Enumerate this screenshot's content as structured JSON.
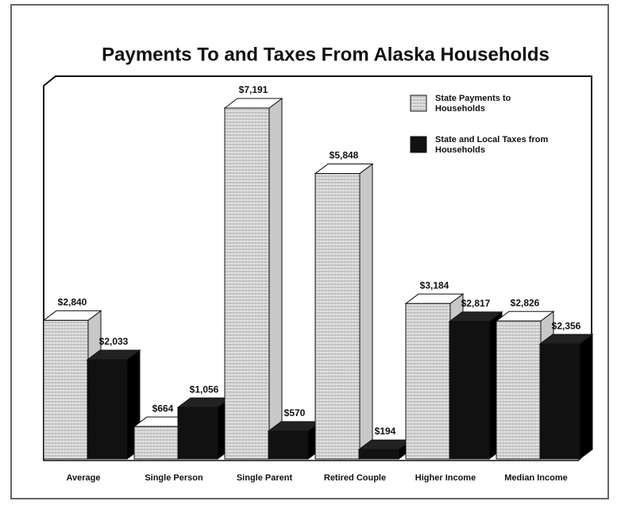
{
  "chart_data": {
    "type": "bar3d",
    "title": "Payments To and Taxes From Alaska Households",
    "categories": [
      "Average",
      "Single Person",
      "Single Parent",
      "Retired Couple",
      "Higher Income",
      "Median Income"
    ],
    "series": [
      {
        "name": "State Payments to Households",
        "color": "#d8d8d8",
        "values": [
          2840,
          664,
          7191,
          5848,
          3184,
          2826
        ],
        "value_labels": [
          "$2,840",
          "$664",
          "$7,191",
          "$5,848",
          "$3,184",
          "$2,826"
        ]
      },
      {
        "name": "State and Local Taxes from Households",
        "color": "#111111",
        "values": [
          2033,
          1056,
          570,
          194,
          2817,
          2356
        ],
        "value_labels": [
          "$2,033",
          "$1,056",
          "$570",
          "$194",
          "$2,817",
          "$2,356"
        ]
      }
    ],
    "legend": "upper right"
  }
}
